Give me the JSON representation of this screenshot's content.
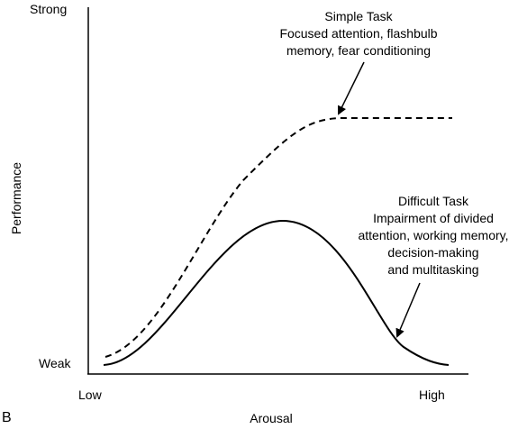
{
  "figure": {
    "panel_label": "B",
    "y_axis": {
      "title": "Performance",
      "top_label": "Strong",
      "bottom_label": "Weak"
    },
    "x_axis": {
      "title": "Arousal",
      "left_label": "Low",
      "right_label": "High"
    },
    "simple_task": {
      "lines": [
        "Simple Task",
        "Focused attention, flashbulb",
        "memory, fear conditioning"
      ],
      "line_style": "dashed"
    },
    "difficult_task": {
      "lines": [
        "Difficult Task",
        "Impairment of divided",
        "attention, working memory,",
        "decision-making",
        "and multitasking"
      ],
      "line_style": "solid"
    },
    "colors": {
      "ink": "#000000",
      "background": "#ffffff"
    }
  }
}
